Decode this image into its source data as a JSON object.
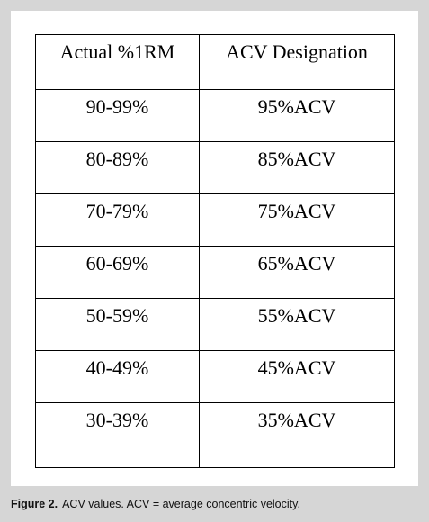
{
  "table": {
    "header": [
      "Actual %1RM",
      "ACV Designation"
    ],
    "rows": [
      [
        "90-99%",
        "95%ACV"
      ],
      [
        "80-89%",
        "85%ACV"
      ],
      [
        "70-79%",
        "75%ACV"
      ],
      [
        "60-69%",
        "65%ACV"
      ],
      [
        "50-59%",
        "55%ACV"
      ],
      [
        "40-49%",
        "45%ACV"
      ],
      [
        "30-39%",
        "35%ACV"
      ]
    ]
  },
  "caption": {
    "label": "Figure 2.",
    "text": "ACV values. ACV = average concentric velocity."
  }
}
